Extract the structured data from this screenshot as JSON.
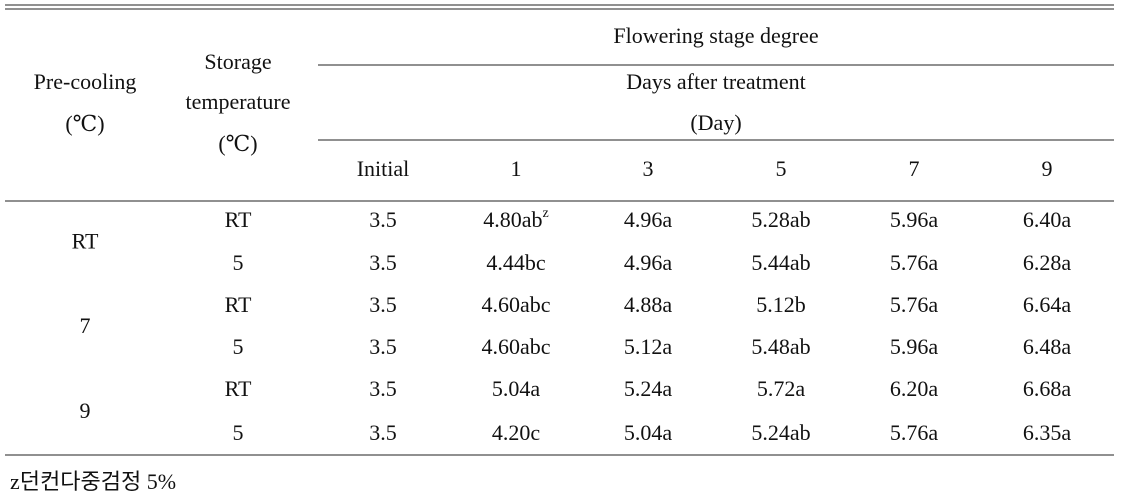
{
  "table": {
    "header": {
      "pre_cooling": [
        "Pre-cooling",
        "(℃)"
      ],
      "storage": [
        "Storage",
        "temperature",
        "(℃)"
      ],
      "group_title": "Flowering stage degree",
      "subgroup_title": [
        "Days after treatment",
        "(Day)"
      ],
      "columns": [
        "Initial",
        "1",
        "3",
        "5",
        "7",
        "9"
      ]
    },
    "groups": [
      {
        "pre_cooling": "RT",
        "rows": [
          {
            "storage": "RT",
            "values": [
              "3.5",
              "4.80ab",
              "4.96a",
              "5.28ab",
              "5.96a",
              "6.40a"
            ],
            "footnote_mark": "z"
          },
          {
            "storage": "5",
            "values": [
              "3.5",
              "4.44bc",
              "4.96a",
              "5.44ab",
              "5.76a",
              "6.28a"
            ]
          }
        ]
      },
      {
        "pre_cooling": "7",
        "rows": [
          {
            "storage": "RT",
            "values": [
              "3.5",
              "4.60abc",
              "4.88a",
              "5.12b",
              "5.76a",
              "6.64a"
            ]
          },
          {
            "storage": "5",
            "values": [
              "3.5",
              "4.60abc",
              "5.12a",
              "5.48ab",
              "5.96a",
              "6.48a"
            ]
          }
        ]
      },
      {
        "pre_cooling": "9",
        "rows": [
          {
            "storage": "RT",
            "values": [
              "3.5",
              "5.04a",
              "5.24a",
              "5.72a",
              "6.20a",
              "6.68a"
            ]
          },
          {
            "storage": "5",
            "values": [
              "3.5",
              "4.20c",
              "5.04a",
              "5.24ab",
              "5.76a",
              "6.35a"
            ]
          }
        ]
      }
    ],
    "footnote": "z던컨다중검정 5%"
  }
}
